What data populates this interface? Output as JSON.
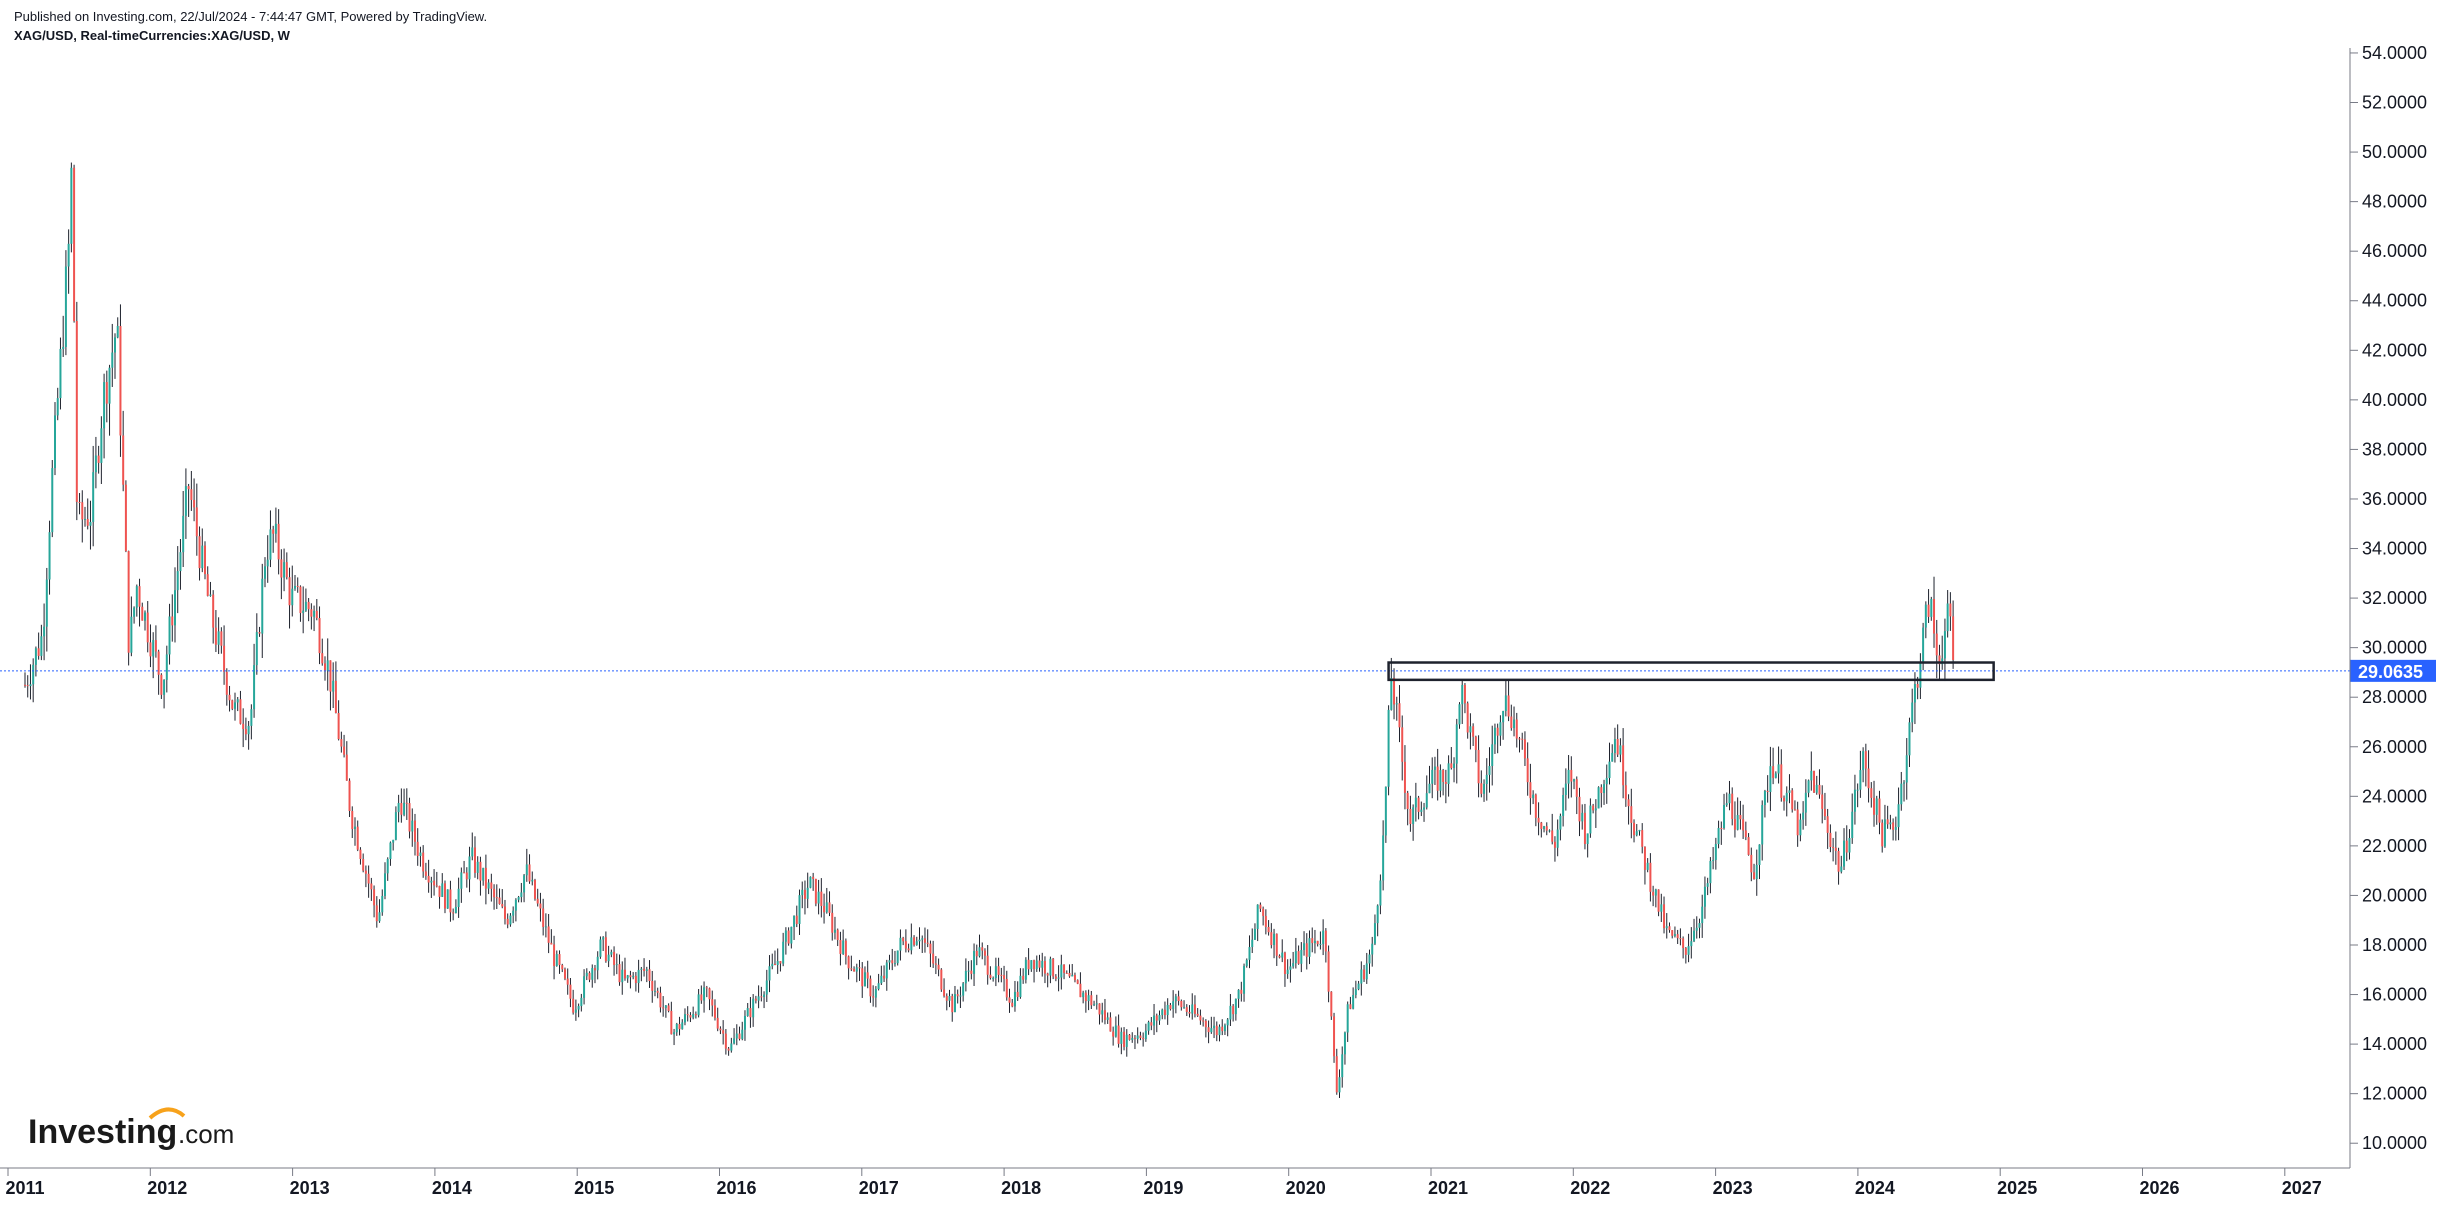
{
  "header": {
    "published": "Published on Investing.com, 22/Jul/2024 - 7:44:47 GMT, Powered by TradingView.",
    "symbol": "XAG/USD, Real-timeCurrencies:XAG/USD, W"
  },
  "logo": {
    "text": "Investing",
    "suffix": ".com"
  },
  "colors": {
    "up": "#26a69a",
    "down": "#ef5350",
    "wick": "#1e222d",
    "grid_axis": "#787b86",
    "price_line": "#2962ff",
    "badge": "#2962ff",
    "box": "#1e222d"
  },
  "chart_data": {
    "type": "candlestick",
    "title": "XAG/USD, Real-timeCurrencies:XAG/USD, W",
    "xlabel": "",
    "ylabel": "",
    "x_ticks": [
      "2011",
      "2012",
      "2013",
      "2014",
      "2015",
      "2016",
      "2017",
      "2018",
      "2019",
      "2020",
      "2021",
      "2022",
      "2023",
      "2024",
      "2025",
      "2026",
      "2027"
    ],
    "y_ticks": [
      "10.0000",
      "12.0000",
      "14.0000",
      "16.0000",
      "18.0000",
      "20.0000",
      "22.0000",
      "24.0000",
      "26.0000",
      "28.0000",
      "30.0000",
      "32.0000",
      "34.0000",
      "36.0000",
      "38.0000",
      "40.0000",
      "42.0000",
      "44.0000",
      "46.0000",
      "48.0000",
      "50.0000",
      "52.0000",
      "54.0000"
    ],
    "ylim": [
      9,
      54.2
    ],
    "xlim": [
      "2011-01-01",
      "2027-05-01"
    ],
    "grid": false,
    "current_price": 29.0635,
    "current_price_label": "29.0635",
    "price_path_weekly_approx": [
      [
        "2011-01-01",
        28.5
      ],
      [
        "2011-02-15",
        30.5
      ],
      [
        "2011-03-10",
        36.5
      ],
      [
        "2011-04-25",
        46.5
      ],
      [
        "2011-05-01",
        49.5
      ],
      [
        "2011-05-15",
        35.0
      ],
      [
        "2011-06-20",
        35.5
      ],
      [
        "2011-07-20",
        40.0
      ],
      [
        "2011-08-25",
        43.0
      ],
      [
        "2011-09-25",
        30.0
      ],
      [
        "2011-10-15",
        32.5
      ],
      [
        "2011-12-20",
        28.5
      ],
      [
        "2012-02-25",
        36.5
      ],
      [
        "2012-04-20",
        31.5
      ],
      [
        "2012-06-20",
        27.5
      ],
      [
        "2012-08-01",
        27.0
      ],
      [
        "2012-09-10",
        34.0
      ],
      [
        "2012-10-01",
        34.5
      ],
      [
        "2012-11-15",
        32.0
      ],
      [
        "2013-01-10",
        31.5
      ],
      [
        "2013-02-20",
        29.0
      ],
      [
        "2013-04-15",
        23.5
      ],
      [
        "2013-06-25",
        19.0
      ],
      [
        "2013-08-20",
        24.0
      ],
      [
        "2013-10-15",
        21.5
      ],
      [
        "2013-12-31",
        19.5
      ],
      [
        "2014-02-20",
        21.5
      ],
      [
        "2014-05-20",
        19.0
      ],
      [
        "2014-07-10",
        21.0
      ],
      [
        "2014-09-20",
        17.5
      ],
      [
        "2014-11-10",
        15.5
      ],
      [
        "2015-01-20",
        18.0
      ],
      [
        "2015-03-20",
        16.5
      ],
      [
        "2015-05-15",
        17.0
      ],
      [
        "2015-07-25",
        14.5
      ],
      [
        "2015-10-15",
        16.0
      ],
      [
        "2015-12-15",
        13.8
      ],
      [
        "2016-02-10",
        15.5
      ],
      [
        "2016-04-20",
        17.5
      ],
      [
        "2016-07-05",
        20.5
      ],
      [
        "2016-08-15",
        19.5
      ],
      [
        "2016-10-10",
        17.5
      ],
      [
        "2016-12-20",
        16.0
      ],
      [
        "2017-02-25",
        18.0
      ],
      [
        "2017-04-15",
        18.5
      ],
      [
        "2017-07-10",
        15.5
      ],
      [
        "2017-09-10",
        17.8
      ],
      [
        "2017-12-10",
        15.8
      ],
      [
        "2018-01-25",
        17.5
      ],
      [
        "2018-04-15",
        16.8
      ],
      [
        "2018-07-15",
        15.5
      ],
      [
        "2018-09-15",
        14.2
      ],
      [
        "2018-11-15",
        14.5
      ],
      [
        "2019-01-25",
        15.8
      ],
      [
        "2019-05-20",
        14.5
      ],
      [
        "2019-07-15",
        16.0
      ],
      [
        "2019-09-05",
        19.5
      ],
      [
        "2019-11-15",
        17.0
      ],
      [
        "2019-12-31",
        17.8
      ],
      [
        "2020-02-20",
        18.5
      ],
      [
        "2020-03-20",
        12.0
      ],
      [
        "2020-04-20",
        15.5
      ],
      [
        "2020-06-20",
        17.8
      ],
      [
        "2020-07-20",
        22.5
      ],
      [
        "2020-08-07",
        29.0
      ],
      [
        "2020-09-25",
        23.0
      ],
      [
        "2020-11-15",
        24.5
      ],
      [
        "2021-01-10",
        25.0
      ],
      [
        "2021-02-01",
        28.5
      ],
      [
        "2021-03-30",
        24.0
      ],
      [
        "2021-05-20",
        28.0
      ],
      [
        "2021-06-10",
        27.5
      ],
      [
        "2021-08-15",
        23.5
      ],
      [
        "2021-09-30",
        22.0
      ],
      [
        "2021-11-10",
        25.0
      ],
      [
        "2021-12-20",
        22.5
      ],
      [
        "2022-03-07",
        26.5
      ],
      [
        "2022-04-20",
        23.0
      ],
      [
        "2022-07-15",
        18.5
      ],
      [
        "2022-09-01",
        17.8
      ],
      [
        "2022-10-15",
        19.5
      ],
      [
        "2022-12-20",
        24.0
      ],
      [
        "2023-02-25",
        21.0
      ],
      [
        "2023-04-10",
        25.5
      ],
      [
        "2023-05-20",
        24.0
      ],
      [
        "2023-06-25",
        22.5
      ],
      [
        "2023-07-20",
        25.0
      ],
      [
        "2023-10-05",
        21.0
      ],
      [
        "2023-12-01",
        25.5
      ],
      [
        "2024-01-20",
        22.5
      ],
      [
        "2024-02-20",
        22.8
      ],
      [
        "2024-03-15",
        25.0
      ],
      [
        "2024-04-10",
        28.0
      ],
      [
        "2024-05-20",
        32.0
      ],
      [
        "2024-06-10",
        29.5
      ],
      [
        "2024-07-10",
        31.3
      ],
      [
        "2024-07-22",
        29.06
      ]
    ],
    "annotations": [
      {
        "type": "rectangle",
        "x_start": "2020-08-01",
        "x_end": "2024-11-01",
        "y_low": 28.7,
        "y_high": 29.4
      }
    ]
  }
}
